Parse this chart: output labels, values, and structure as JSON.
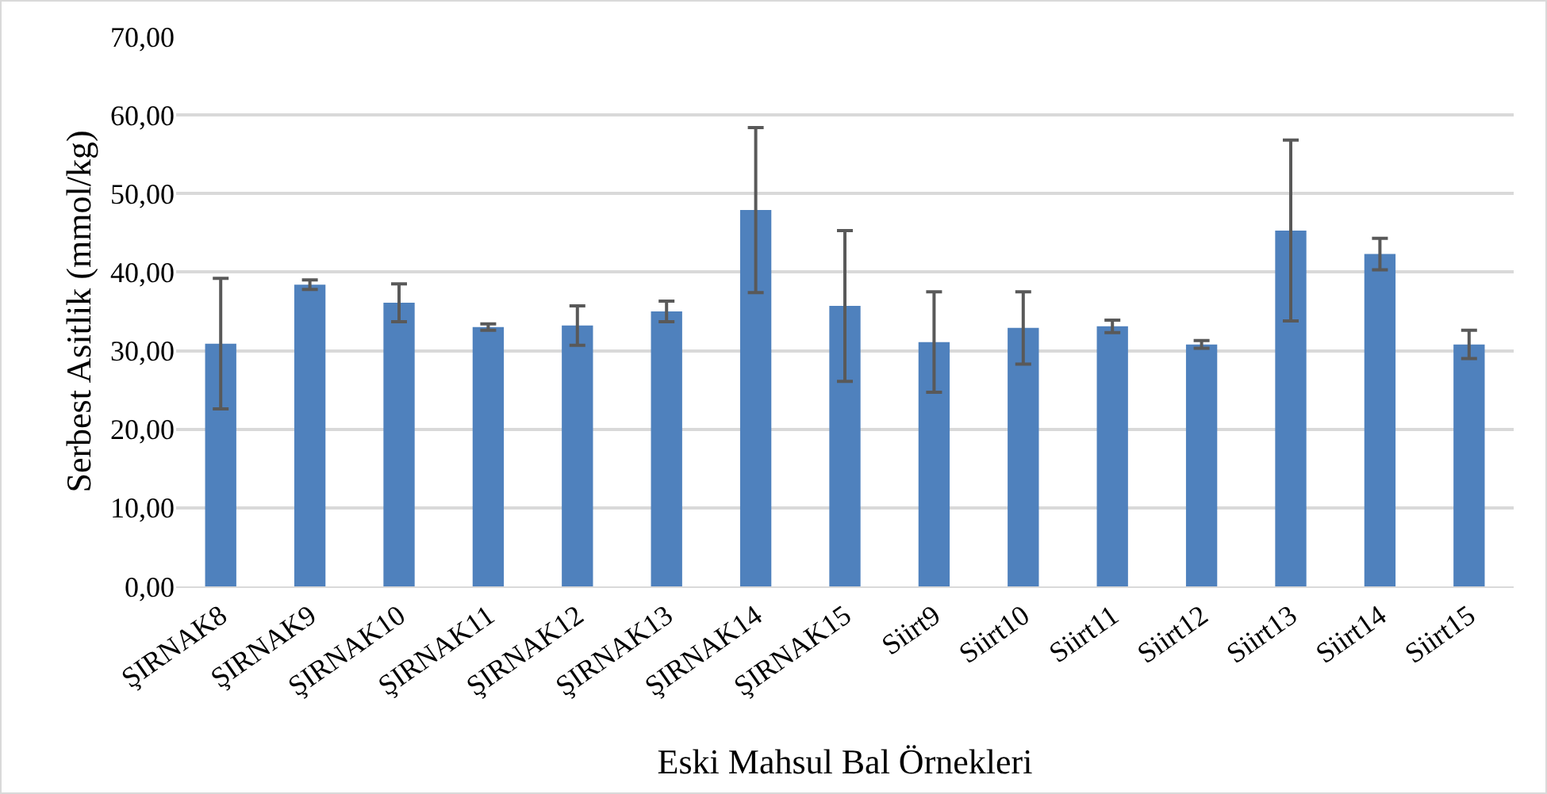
{
  "chart_data": {
    "type": "bar",
    "xlabel": "Eski Mahsul Bal Örnekleri",
    "ylabel": "Serbest Asitlik (mmol/kg)",
    "categories": [
      "ŞIRNAK8",
      "ŞIRNAK9",
      "ŞIRNAK10",
      "ŞIRNAK11",
      "ŞIRNAK12",
      "ŞIRNAK13",
      "ŞIRNAK14",
      "ŞIRNAK15",
      "Siirt9",
      "Siirt10",
      "Siirt11",
      "Siirt12",
      "Siirt13",
      "Siirt14",
      "Siirt15"
    ],
    "values": [
      30.9,
      38.4,
      36.1,
      33.0,
      33.2,
      35.0,
      47.9,
      35.7,
      31.1,
      32.9,
      33.1,
      30.8,
      45.3,
      42.3,
      30.8
    ],
    "errors": [
      8.3,
      0.6,
      2.4,
      0.4,
      2.5,
      1.3,
      10.5,
      9.6,
      6.4,
      4.6,
      0.8,
      0.5,
      11.5,
      2.0,
      1.8
    ],
    "color": "#4f81bd",
    "ylim": [
      0,
      70
    ],
    "yticks": [
      {
        "value": 0,
        "label": "0,00"
      },
      {
        "value": 10,
        "label": "10,00"
      },
      {
        "value": 20,
        "label": "20,00"
      },
      {
        "value": 30,
        "label": "30,00"
      },
      {
        "value": 40,
        "label": "40,00"
      },
      {
        "value": 50,
        "label": "50,00"
      },
      {
        "value": 60,
        "label": "60,00"
      },
      {
        "value": 70,
        "label": "70,00"
      }
    ],
    "grid": "y"
  }
}
